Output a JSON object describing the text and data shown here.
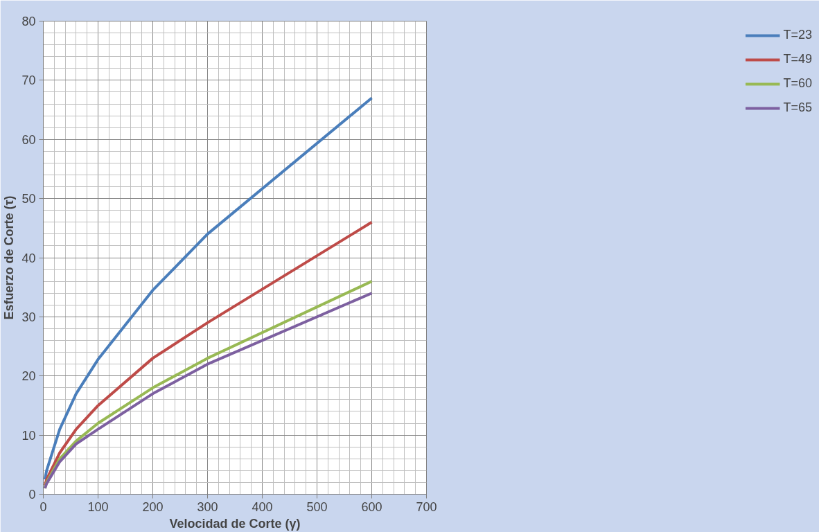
{
  "chart_data": {
    "type": "line",
    "xlabel": "Velocidad de Corte (γ)",
    "ylabel": "Esfuerzo de Corte (τ)",
    "x": [
      3,
      6,
      30,
      60,
      100,
      200,
      300,
      600
    ],
    "series": [
      {
        "name": "T=23",
        "color": "#4a7ebb",
        "values": [
          2.5,
          4,
          11,
          17,
          22.8,
          34.5,
          44,
          67
        ]
      },
      {
        "name": "T=49",
        "color": "#be4b48",
        "values": [
          1.5,
          2.5,
          7,
          11,
          15,
          23,
          29,
          46
        ]
      },
      {
        "name": "T=60",
        "color": "#98b954",
        "values": [
          1,
          2,
          6,
          9,
          12,
          18,
          23,
          36
        ]
      },
      {
        "name": "T=65",
        "color": "#7d60a0",
        "values": [
          1,
          1.8,
          5.5,
          8.5,
          11,
          17,
          22,
          34
        ]
      }
    ],
    "xlim": [
      0,
      700
    ],
    "xticks": [
      0,
      100,
      200,
      300,
      400,
      500,
      600,
      700
    ],
    "ylim": [
      0,
      80
    ],
    "yticks": [
      0,
      10,
      20,
      30,
      40,
      50,
      60,
      70,
      80
    ],
    "grid": true,
    "legend": "right",
    "marker": "none",
    "line_style": "solid"
  }
}
